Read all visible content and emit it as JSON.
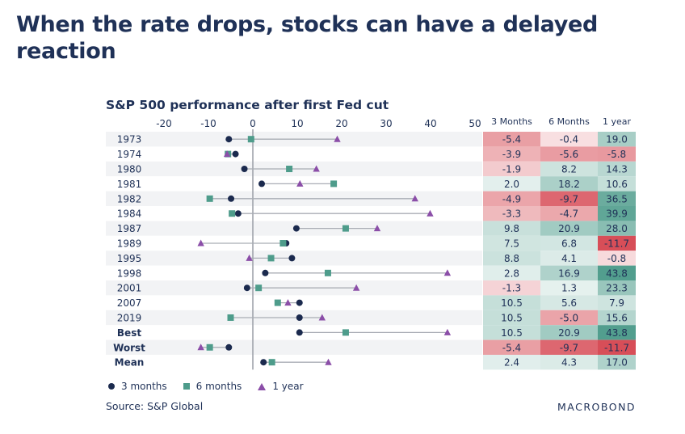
{
  "title": "When the rate drops, stocks can have a delayed reaction",
  "chart_data": {
    "type": "dot-plot-with-table",
    "title": "S&P 500 performance after first Fed cut",
    "xlim": [
      -20,
      50
    ],
    "xticks": [
      -20,
      -10,
      0,
      10,
      20,
      30,
      40,
      50
    ],
    "rows": [
      "1973",
      "1974",
      "1980",
      "1981",
      "1982",
      "1984",
      "1987",
      "1989",
      "1995",
      "1998",
      "2001",
      "2007",
      "2019",
      "Best",
      "Worst",
      "Mean"
    ],
    "bold_rows": [
      "Best",
      "Worst",
      "Mean"
    ],
    "series": [
      {
        "name": "3 months",
        "marker": "circle",
        "color": "#1b2a4e",
        "values": [
          -5.4,
          -3.9,
          -1.9,
          2.0,
          -4.9,
          -3.3,
          9.8,
          7.5,
          8.8,
          2.8,
          -1.3,
          10.5,
          10.5,
          10.5,
          -5.4,
          2.4
        ]
      },
      {
        "name": "6 months",
        "marker": "square",
        "color": "#4e9c8b",
        "values": [
          -0.4,
          -5.6,
          8.2,
          18.2,
          -9.7,
          -4.7,
          20.9,
          6.8,
          4.1,
          16.9,
          1.3,
          5.6,
          -5.0,
          20.9,
          -9.7,
          4.3
        ]
      },
      {
        "name": "1 year",
        "marker": "triangle",
        "color": "#8b4ea8",
        "values": [
          19.0,
          -5.8,
          14.3,
          10.6,
          36.5,
          39.9,
          28.0,
          -11.7,
          -0.8,
          43.8,
          23.3,
          7.9,
          15.6,
          43.8,
          -11.7,
          17.0
        ]
      }
    ],
    "table": {
      "columns": [
        "3 Months",
        "6 Months",
        "1 year"
      ],
      "values": [
        [
          "-5.4",
          "-0.4",
          "19.0"
        ],
        [
          "-3.9",
          "-5.6",
          "-5.8"
        ],
        [
          "-1.9",
          "8.2",
          "14.3"
        ],
        [
          "2.0",
          "18.2",
          "10.6"
        ],
        [
          "-4.9",
          "-9.7",
          "36.5"
        ],
        [
          "-3.3",
          "-4.7",
          "39.9"
        ],
        [
          "9.8",
          "20.9",
          "28.0"
        ],
        [
          "7.5",
          "6.8",
          "-11.7"
        ],
        [
          "8.8",
          "4.1",
          "-0.8"
        ],
        [
          "2.8",
          "16.9",
          "43.8"
        ],
        [
          "-1.3",
          "1.3",
          "23.3"
        ],
        [
          "10.5",
          "5.6",
          "7.9"
        ],
        [
          "10.5",
          "-5.0",
          "15.6"
        ],
        [
          "10.5",
          "20.9",
          "43.8"
        ],
        [
          "-5.4",
          "-9.7",
          "-11.7"
        ],
        [
          "2.4",
          "4.3",
          "17.0"
        ]
      ]
    },
    "grid": false,
    "legend_position": "bottom-left"
  },
  "source": "Source: S&P Global",
  "brand": "MACROBOND"
}
